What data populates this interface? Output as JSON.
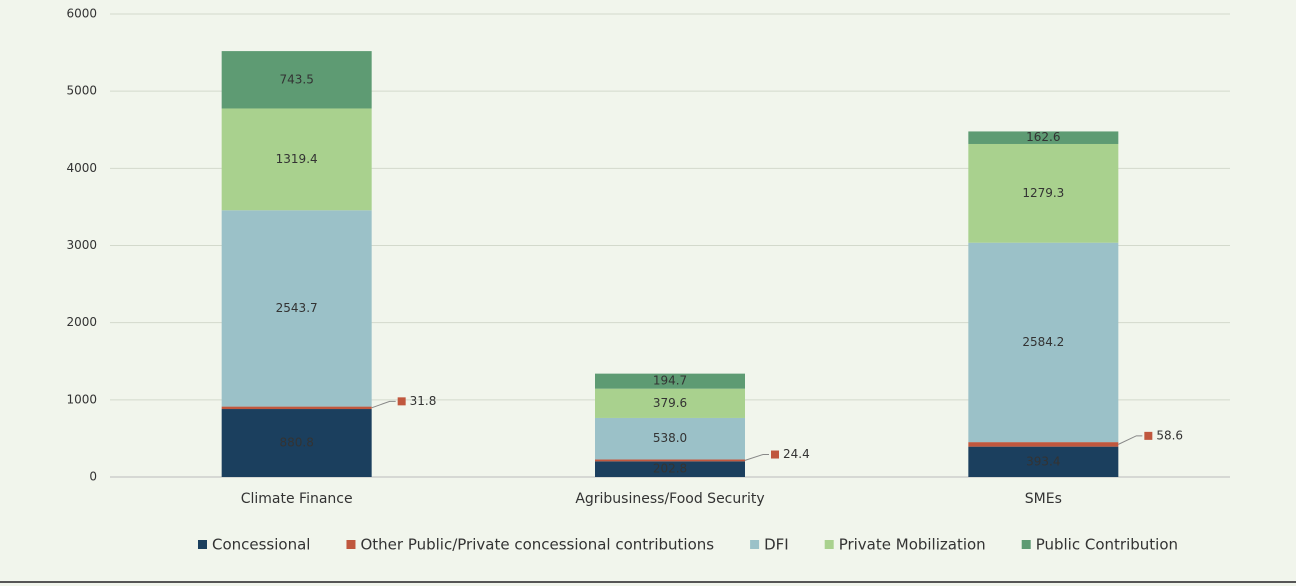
{
  "chart_data": {
    "type": "stacked_bar",
    "categories": [
      "Climate Finance",
      "Agribusiness/Food Security",
      "SMEs"
    ],
    "series": [
      {
        "name": "Concessional",
        "color": "#1b3f5e",
        "values": [
          880.8,
          202.8,
          393.4
        ]
      },
      {
        "name": "Other Public/Private concessional contributions",
        "color": "#c0573e",
        "values": [
          31.8,
          24.4,
          58.6
        ]
      },
      {
        "name": "DFI",
        "color": "#9bc1c8",
        "values": [
          2543.7,
          538.0,
          2584.2
        ],
        "value_labels": [
          "2543.7",
          "538.0",
          "2584.2"
        ]
      },
      {
        "name": "Private Mobilization",
        "color": "#a9d18e",
        "values": [
          1319.4,
          379.6,
          1279.3
        ]
      },
      {
        "name": "Public Contribution",
        "color": "#5e9b73",
        "values": [
          743.5,
          194.7,
          162.6
        ]
      }
    ],
    "ylim": [
      0,
      6000
    ],
    "yticks": [
      0,
      1000,
      2000,
      3000,
      4000,
      5000,
      6000
    ],
    "grid": true,
    "legend": "bottom"
  }
}
